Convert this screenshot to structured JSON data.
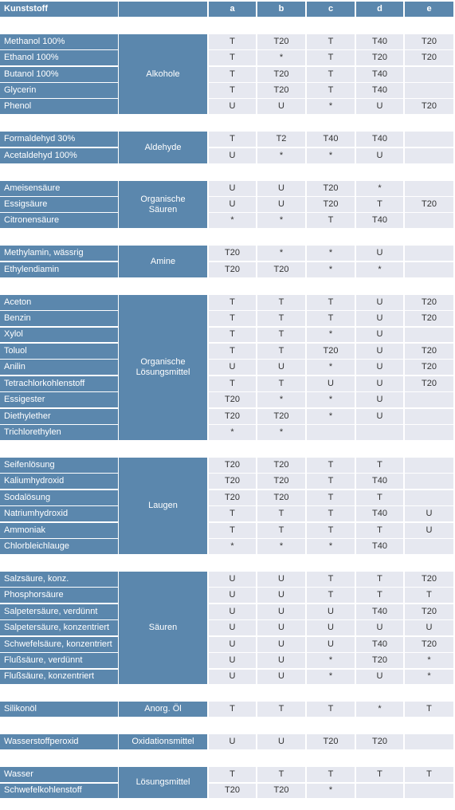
{
  "header": {
    "title": "Kunststoff",
    "columns": [
      "a",
      "b",
      "c",
      "d",
      "e"
    ]
  },
  "groups": [
    {
      "name": "Alkohole",
      "rows": [
        {
          "name": "Methanol 100%",
          "values": [
            "T",
            "T20",
            "T",
            "T40",
            "T20"
          ]
        },
        {
          "name": "Ethanol 100%",
          "values": [
            "T",
            "*",
            "T",
            "T20",
            "T20"
          ]
        },
        {
          "name": "Butanol 100%",
          "values": [
            "T",
            "T20",
            "T",
            "T40",
            null
          ]
        },
        {
          "name": "Glycerin",
          "values": [
            "T",
            "T20",
            "T",
            "T40",
            null
          ]
        },
        {
          "name": "Phenol",
          "values": [
            "U",
            "U",
            "*",
            "U",
            "T20"
          ]
        }
      ]
    },
    {
      "name": "Aldehyde",
      "rows": [
        {
          "name": "Formaldehyd 30%",
          "values": [
            "T",
            "T2",
            "T40",
            "T40",
            null
          ]
        },
        {
          "name": "Acetaldehyd 100%",
          "values": [
            "U",
            "*",
            "*",
            "U",
            null
          ]
        }
      ]
    },
    {
      "name": "Organische Säuren",
      "rows": [
        {
          "name": "Ameisensäure",
          "values": [
            "U",
            "U",
            "T20",
            "*",
            null
          ]
        },
        {
          "name": "Essigsäure",
          "values": [
            "U",
            "U",
            "T20",
            "T",
            "T20"
          ]
        },
        {
          "name": "Citronensäure",
          "values": [
            "*",
            "*",
            "T",
            "T40",
            null
          ]
        }
      ]
    },
    {
      "name": "Amine",
      "rows": [
        {
          "name": "Methylamin, wässrig",
          "values": [
            "T20",
            "*",
            "*",
            "U",
            null
          ]
        },
        {
          "name": "Ethylendiamin",
          "values": [
            "T20",
            "T20",
            "*",
            "*",
            null
          ]
        }
      ]
    },
    {
      "name": "Organische Lösungsmittel",
      "rows": [
        {
          "name": "Aceton",
          "values": [
            "T",
            "T",
            "T",
            "U",
            "T20"
          ]
        },
        {
          "name": "Benzin",
          "values": [
            "T",
            "T",
            "T",
            "U",
            "T20"
          ]
        },
        {
          "name": "Xylol",
          "values": [
            "T",
            "T",
            "*",
            "U",
            null
          ]
        },
        {
          "name": "Toluol",
          "values": [
            "T",
            "T",
            "T20",
            "U",
            "T20"
          ]
        },
        {
          "name": "Anilin",
          "values": [
            "U",
            "U",
            "*",
            "U",
            "T20"
          ]
        },
        {
          "name": "Tetrachlorkohlenstoff",
          "values": [
            "T",
            "T",
            "U",
            "U",
            "T20"
          ]
        },
        {
          "name": "Essigester",
          "values": [
            "T20",
            "*",
            "*",
            "U",
            null
          ]
        },
        {
          "name": "Diethylether",
          "values": [
            "T20",
            "T20",
            "*",
            "U",
            null
          ]
        },
        {
          "name": "Trichlorethylen",
          "values": [
            "*",
            "*",
            null,
            null,
            null
          ]
        }
      ]
    },
    {
      "name": "Laugen",
      "rows": [
        {
          "name": "Seifenlösung",
          "values": [
            "T20",
            "T20",
            "T",
            "T",
            null
          ]
        },
        {
          "name": "Kaliumhydroxid",
          "values": [
            "T20",
            "T20",
            "T",
            "T40",
            null
          ]
        },
        {
          "name": "Sodalösung",
          "values": [
            "T20",
            "T20",
            "T",
            "T",
            null
          ]
        },
        {
          "name": "Natriumhydroxid",
          "values": [
            "T",
            "T",
            "T",
            "T40",
            "U"
          ]
        },
        {
          "name": "Ammoniak",
          "values": [
            "T",
            "T",
            "T",
            "T",
            "U"
          ]
        },
        {
          "name": "Chlorbleichlauge",
          "values": [
            "*",
            "*",
            "*",
            "T40",
            null
          ]
        }
      ]
    },
    {
      "name": "Säuren",
      "rows": [
        {
          "name": "Salzsäure, konz.",
          "values": [
            "U",
            "U",
            "T",
            "T",
            "T20"
          ]
        },
        {
          "name": "Phosphorsäure",
          "values": [
            "U",
            "U",
            "T",
            "T",
            "T"
          ]
        },
        {
          "name": "Salpetersäure, verdünnt",
          "values": [
            "U",
            "U",
            "U",
            "T40",
            "T20"
          ]
        },
        {
          "name": "Salpetersäure, konzentriert",
          "values": [
            "U",
            "U",
            "U",
            "U",
            "U"
          ]
        },
        {
          "name": "Schwefelsäure, konzentriert",
          "values": [
            "U",
            "U",
            "U",
            "T40",
            "T20"
          ]
        },
        {
          "name": "Flußsäure, verdünnt",
          "values": [
            "U",
            "U",
            "*",
            "T20",
            "*"
          ]
        },
        {
          "name": "Flußsäure, konzentriert",
          "values": [
            "U",
            "U",
            "*",
            "U",
            "*"
          ]
        }
      ]
    },
    {
      "name": "Anorg. Öl",
      "rows": [
        {
          "name": "Silikonöl",
          "values": [
            "T",
            "T",
            "T",
            "*",
            "T"
          ]
        }
      ]
    },
    {
      "name": "Oxidationsmittel",
      "rows": [
        {
          "name": "Wasserstoffperoxid",
          "values": [
            "U",
            "U",
            "T20",
            "T20",
            null
          ]
        }
      ]
    },
    {
      "name": "Lösungsmittel",
      "rows": [
        {
          "name": "Wasser",
          "values": [
            "T",
            "T",
            "T",
            "T",
            "T"
          ]
        },
        {
          "name": "Schwefelkohlenstoff",
          "values": [
            "T20",
            "T20",
            "*",
            null,
            null
          ]
        }
      ]
    }
  ]
}
